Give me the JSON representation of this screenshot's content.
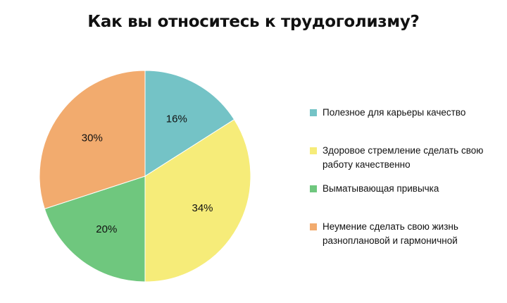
{
  "chart_data": {
    "type": "pie",
    "title": "Как вы относитесь к трудоголизму?",
    "categories": [
      "Полезное для карьеры качество",
      "Здоровое стремление сделать свою работу качественно",
      "Выматывающая привычка",
      "Неумение сделать свою жизнь разноплановой и гармоничной"
    ],
    "values": [
      16,
      34,
      20,
      30
    ],
    "value_labels": [
      "16%",
      "34%",
      "20%",
      "30%"
    ],
    "colors": [
      "#74c3c6",
      "#f6ec79",
      "#6fc77e",
      "#f2ab6e"
    ],
    "legend_position": "right"
  }
}
